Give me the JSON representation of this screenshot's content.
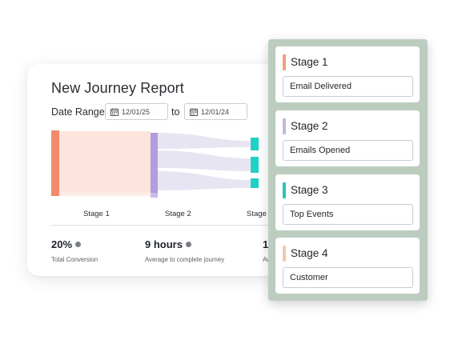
{
  "report": {
    "title": "New Journey Report",
    "date_range_label": "Date Range",
    "date_from": "12/01/25",
    "to_label": "to",
    "date_to": "12/01/24",
    "stage_labels": [
      "Stage 1",
      "Stage 2",
      "Stage"
    ],
    "metrics": [
      {
        "value": "20%",
        "caption": "Total Conversion"
      },
      {
        "value": "9 hours",
        "caption": "Average to complete journey"
      },
      {
        "value": "1",
        "caption": "Av"
      }
    ]
  },
  "stages": [
    {
      "name": "Stage 1",
      "field": "Email Delivered",
      "color": "#f0a07e"
    },
    {
      "name": "Stage 2",
      "field": "Emails Opened",
      "color": "#c4b4e2"
    },
    {
      "name": "Stage 3",
      "field": "Top Events",
      "color": "#21c7c0"
    },
    {
      "name": "Stage 4",
      "field": "Customer",
      "color": "#f5c9ad"
    }
  ],
  "colors": {
    "stage1_node": "#f28a6c",
    "stage1_flow": "#fde4dd",
    "stage2_node": "#b39ce0",
    "stage2_flow": "#e8e5f3",
    "stage3_node": "#21d1c6",
    "panel_bg": "#bccdc0"
  },
  "icons": {
    "calendar": "calendar-icon"
  }
}
